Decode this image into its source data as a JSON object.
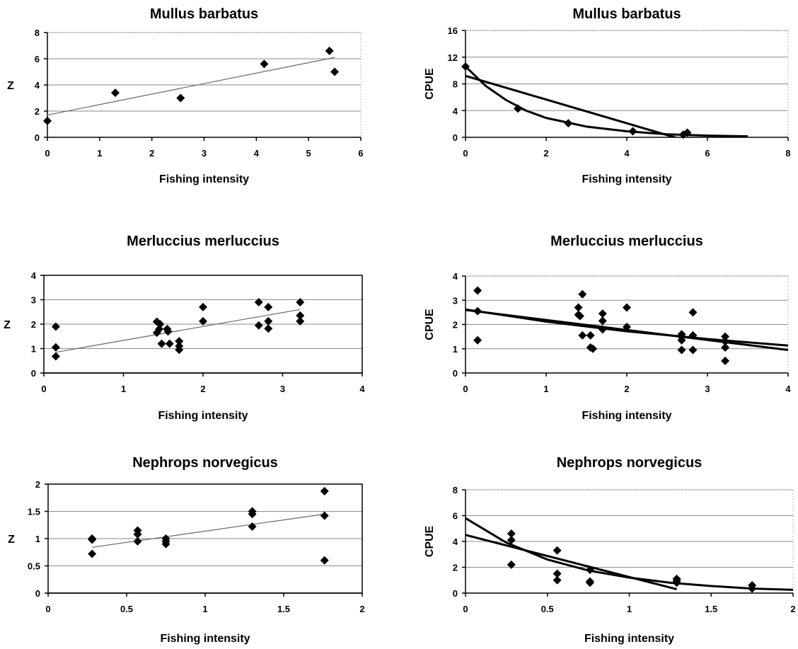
{
  "chart_data": [
    {
      "id": "z-mullus",
      "type": "scatter",
      "title": "Mullus barbatus",
      "xlabel": "Fishing intensity",
      "ylabel": "Z",
      "xlim": [
        0,
        6
      ],
      "ylim": [
        0,
        8
      ],
      "xticks": [
        "0",
        "1",
        "2",
        "3",
        "4",
        "5",
        "6"
      ],
      "yticks": [
        "0",
        "2",
        "4",
        "6",
        "8"
      ],
      "grid": true,
      "boxed": false,
      "series": [
        {
          "kind": "points",
          "x": [
            0,
            1.3,
            2.55,
            4.15,
            5.4,
            5.5
          ],
          "y": [
            1.25,
            3.4,
            3.0,
            5.6,
            6.6,
            5.0
          ]
        },
        {
          "kind": "line",
          "weight": "thin",
          "x": [
            0,
            5.5
          ],
          "y": [
            1.7,
            6.1
          ]
        }
      ]
    },
    {
      "id": "cpue-mullus",
      "type": "scatter",
      "title": "Mullus barbatus",
      "xlabel": "Fishing intensity",
      "ylabel": "CPUE",
      "xlim": [
        0,
        8
      ],
      "ylim": [
        0,
        16
      ],
      "xticks": [
        "0",
        "2",
        "4",
        "6",
        "8"
      ],
      "yticks": [
        "0",
        "4",
        "8",
        "12",
        "16"
      ],
      "grid": true,
      "boxed": false,
      "series": [
        {
          "kind": "points",
          "x": [
            0,
            1.3,
            2.55,
            4.15,
            5.4,
            5.5
          ],
          "y": [
            10.6,
            4.3,
            2.1,
            0.9,
            0.4,
            0.7
          ]
        },
        {
          "kind": "line",
          "weight": "thick",
          "x": [
            0,
            5.3
          ],
          "y": [
            9.2,
            -0.2
          ]
        },
        {
          "kind": "line",
          "weight": "thick",
          "x": [
            0,
            0.5,
            1,
            1.5,
            2,
            3,
            4,
            5,
            6,
            7
          ],
          "y": [
            10.6,
            7.7,
            5.6,
            4.0,
            2.9,
            1.6,
            0.9,
            0.45,
            0.25,
            0.15
          ]
        }
      ]
    },
    {
      "id": "z-merluccius",
      "type": "scatter",
      "title": "Merluccius merluccius",
      "xlabel": "Fishing intensity",
      "ylabel": "Z",
      "xlim": [
        0,
        4
      ],
      "ylim": [
        0,
        4
      ],
      "xticks": [
        "0",
        "1",
        "2",
        "3",
        "4"
      ],
      "yticks": [
        "0",
        "1",
        "2",
        "3",
        "4"
      ],
      "grid": true,
      "boxed": true,
      "series": [
        {
          "kind": "points",
          "x": [
            0.15,
            0.15,
            0.15,
            1.42,
            1.42,
            1.45,
            1.46,
            1.48,
            1.55,
            1.56,
            1.58,
            1.7,
            1.7,
            1.7,
            2.0,
            2.0,
            2.7,
            2.7,
            2.82,
            2.82,
            2.82,
            3.22,
            3.22,
            3.22
          ],
          "y": [
            1.9,
            1.05,
            0.68,
            2.1,
            1.65,
            1.8,
            2.0,
            1.2,
            1.8,
            1.7,
            1.2,
            1.3,
            1.1,
            0.95,
            2.7,
            2.12,
            2.9,
            1.95,
            2.7,
            2.12,
            1.82,
            2.9,
            2.35,
            2.12
          ]
        },
        {
          "kind": "line",
          "weight": "thin",
          "x": [
            0.15,
            3.22
          ],
          "y": [
            0.85,
            2.6
          ]
        }
      ]
    },
    {
      "id": "cpue-merluccius",
      "type": "scatter",
      "title": "Merluccius merluccius",
      "xlabel": "Fishing intensity",
      "ylabel": "CPUE",
      "xlim": [
        0,
        4
      ],
      "ylim": [
        0,
        4
      ],
      "xticks": [
        "0",
        "1",
        "2",
        "3",
        "4"
      ],
      "yticks": [
        "0",
        "1",
        "2",
        "3",
        "4"
      ],
      "grid": true,
      "boxed": false,
      "series": [
        {
          "kind": "points",
          "x": [
            0.15,
            0.15,
            0.15,
            1.4,
            1.4,
            1.42,
            1.45,
            1.45,
            1.55,
            1.55,
            1.58,
            1.7,
            1.7,
            1.7,
            2.0,
            2.0,
            2.68,
            2.68,
            2.68,
            2.68,
            2.82,
            2.82,
            2.82,
            3.22,
            3.22,
            3.22,
            3.22
          ],
          "y": [
            3.4,
            2.55,
            1.35,
            2.7,
            2.4,
            2.35,
            3.25,
            1.55,
            1.55,
            1.05,
            1.0,
            2.45,
            2.15,
            1.8,
            2.7,
            1.9,
            1.6,
            1.5,
            1.35,
            0.95,
            2.5,
            1.55,
            0.95,
            1.5,
            1.3,
            1.05,
            0.5
          ]
        },
        {
          "kind": "line",
          "weight": "thick",
          "x": [
            0,
            4
          ],
          "y": [
            2.6,
            0.95
          ]
        },
        {
          "kind": "line",
          "weight": "thick",
          "x": [
            0,
            1,
            2,
            3,
            4
          ],
          "y": [
            2.62,
            2.12,
            1.72,
            1.4,
            1.13
          ]
        }
      ]
    },
    {
      "id": "z-nephrops",
      "type": "scatter",
      "title": "Nephrops norvegicus",
      "xlabel": "Fishing intensity",
      "ylabel": "Z",
      "xlim": [
        0,
        2
      ],
      "ylim": [
        0,
        2
      ],
      "xticks": [
        "0",
        "0.5",
        "1",
        "1.5",
        "2"
      ],
      "yticks": [
        "0",
        "0.5",
        "1",
        "1.5",
        "2"
      ],
      "grid": true,
      "boxed": true,
      "series": [
        {
          "kind": "points",
          "x": [
            0.28,
            0.28,
            0.28,
            0.57,
            0.57,
            0.57,
            0.75,
            0.75,
            0.75,
            1.3,
            1.3,
            1.3,
            1.76,
            1.76,
            1.76
          ],
          "y": [
            1.0,
            0.98,
            0.72,
            1.15,
            1.08,
            0.95,
            1.0,
            0.95,
            0.9,
            1.5,
            1.45,
            1.22,
            1.87,
            1.42,
            0.6
          ]
        },
        {
          "kind": "line",
          "weight": "thin",
          "x": [
            0.28,
            1.76
          ],
          "y": [
            0.84,
            1.45
          ]
        }
      ]
    },
    {
      "id": "cpue-nephrops",
      "type": "scatter",
      "title": "Nephrops norvegicus",
      "xlabel": "Fishing intensity",
      "ylabel": "CPUE",
      "xlim": [
        0,
        2
      ],
      "ylim": [
        0,
        8
      ],
      "xticks": [
        "0",
        "0.5",
        "1",
        "1.5",
        "2"
      ],
      "yticks": [
        "0",
        "2",
        "4",
        "6",
        "8"
      ],
      "grid": true,
      "boxed": false,
      "series": [
        {
          "kind": "points",
          "x": [
            0.28,
            0.28,
            0.28,
            0.56,
            0.56,
            0.56,
            0.76,
            0.76,
            0.76,
            1.29,
            1.29,
            1.29,
            1.75,
            1.75
          ],
          "y": [
            4.6,
            4.1,
            2.2,
            3.3,
            1.5,
            1.0,
            1.8,
            0.9,
            0.8,
            1.1,
            0.95,
            0.8,
            0.6,
            0.35
          ]
        },
        {
          "kind": "line",
          "weight": "thick",
          "x": [
            0,
            1.29
          ],
          "y": [
            4.5,
            0.3
          ]
        },
        {
          "kind": "line",
          "weight": "thick",
          "x": [
            0,
            0.25,
            0.5,
            0.75,
            1,
            1.25,
            1.5,
            1.75,
            2
          ],
          "y": [
            5.8,
            3.9,
            2.6,
            1.75,
            1.2,
            0.8,
            0.55,
            0.35,
            0.25
          ]
        }
      ]
    }
  ]
}
